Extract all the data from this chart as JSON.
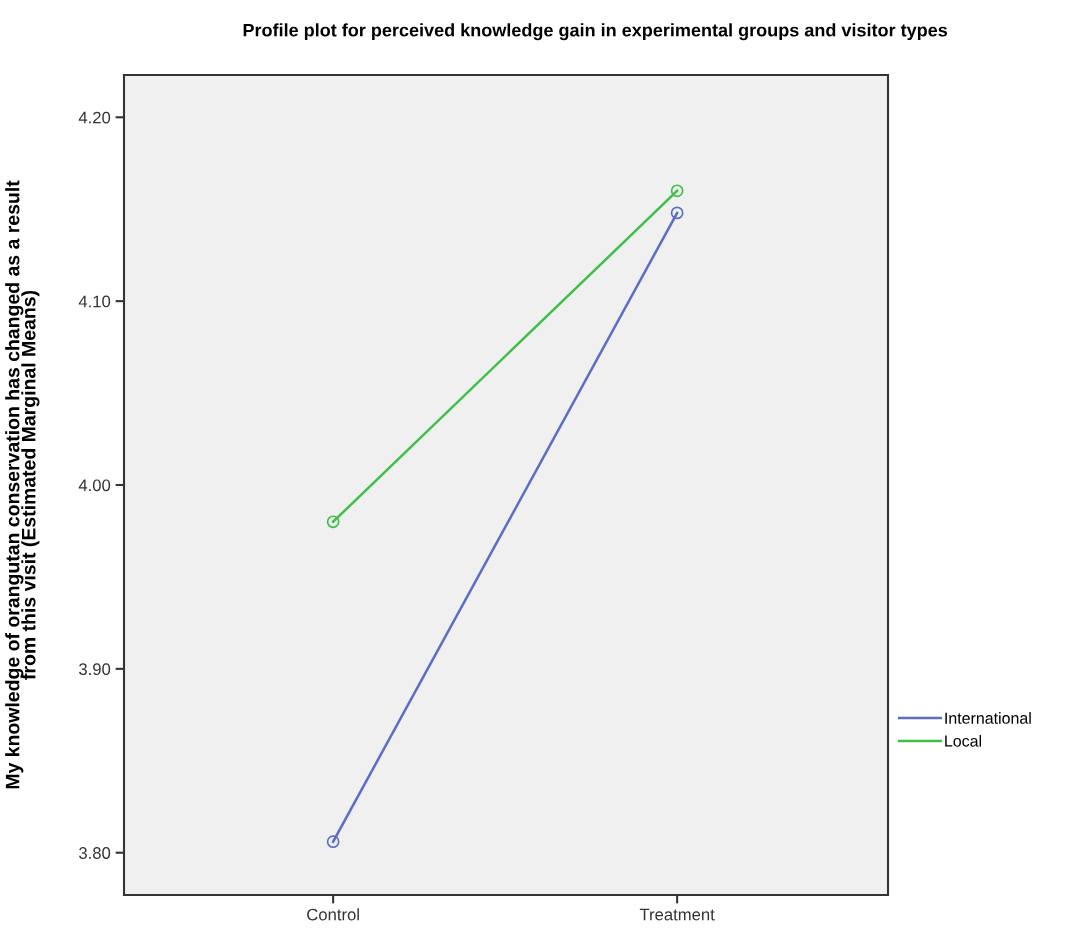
{
  "chart_data": {
    "type": "line",
    "title": "Profile plot for perceived knowledge gain in experimental groups and visitor types",
    "ylabel": "My knowledge of orangutan conservation has changed as a result\nfrom this visit (Estimated Marginal Means)",
    "categories": [
      "Control",
      "Treatment"
    ],
    "series": [
      {
        "name": "International",
        "color": "#5a6ec4",
        "values": [
          3.806,
          4.148
        ]
      },
      {
        "name": "Local",
        "color": "#3fbf4a",
        "values": [
          3.98,
          4.16
        ]
      }
    ],
    "ylim": [
      3.777,
      4.223
    ],
    "yticks": [
      {
        "value": 3.8,
        "label": "3.80"
      },
      {
        "value": 3.9,
        "label": "3.90"
      },
      {
        "value": 4.0,
        "label": "4.00"
      },
      {
        "value": 4.1,
        "label": "4.10"
      },
      {
        "value": 4.2,
        "label": "4.20"
      }
    ],
    "grid": false,
    "legend": "right",
    "marker": "circle",
    "line_style": "solid"
  }
}
